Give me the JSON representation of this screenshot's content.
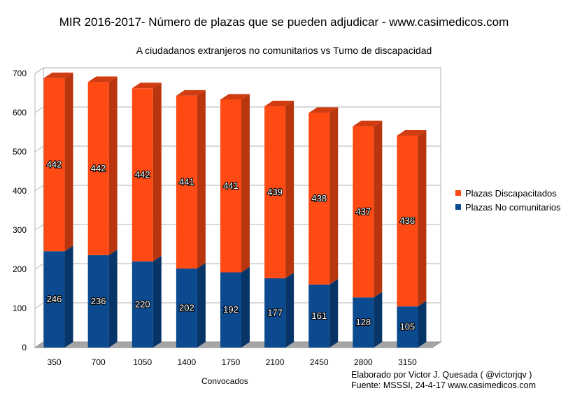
{
  "chart_data": {
    "type": "bar",
    "stacked": true,
    "title": "MIR 2016-2017- Número de plazas que se pueden adjudicar - www.casimedicos.com",
    "subtitle": "A ciudadanos extranjeros no comunitarios vs Turno de discapacidad",
    "xlabel": "Convocados",
    "ylabel": "",
    "ylim": [
      0,
      700
    ],
    "yticks": [
      0,
      100,
      200,
      300,
      400,
      500,
      600,
      700
    ],
    "categories": [
      "350",
      "700",
      "1050",
      "1400",
      "1750",
      "2100",
      "2450",
      "2800",
      "3150"
    ],
    "series": [
      {
        "name": "Plazas No comunitarios",
        "color": "#0b4a8f",
        "values": [
          246,
          236,
          220,
          202,
          192,
          177,
          161,
          128,
          105
        ]
      },
      {
        "name": "Plazas Discapacitados",
        "color": "#ff4a14",
        "values": [
          442,
          442,
          442,
          441,
          441,
          439,
          438,
          437,
          436
        ]
      }
    ],
    "legend": "right",
    "legend_order": [
      "Plazas Discapacitados",
      "Plazas No comunitarios"
    ],
    "grid": true,
    "style": "3d"
  },
  "footer": {
    "line1": "Elaborado por Victor J. Quesada ( @victorjqv )",
    "line2": "Fuente: MSSSI, 24-4-17 www.casimedicos.com"
  }
}
